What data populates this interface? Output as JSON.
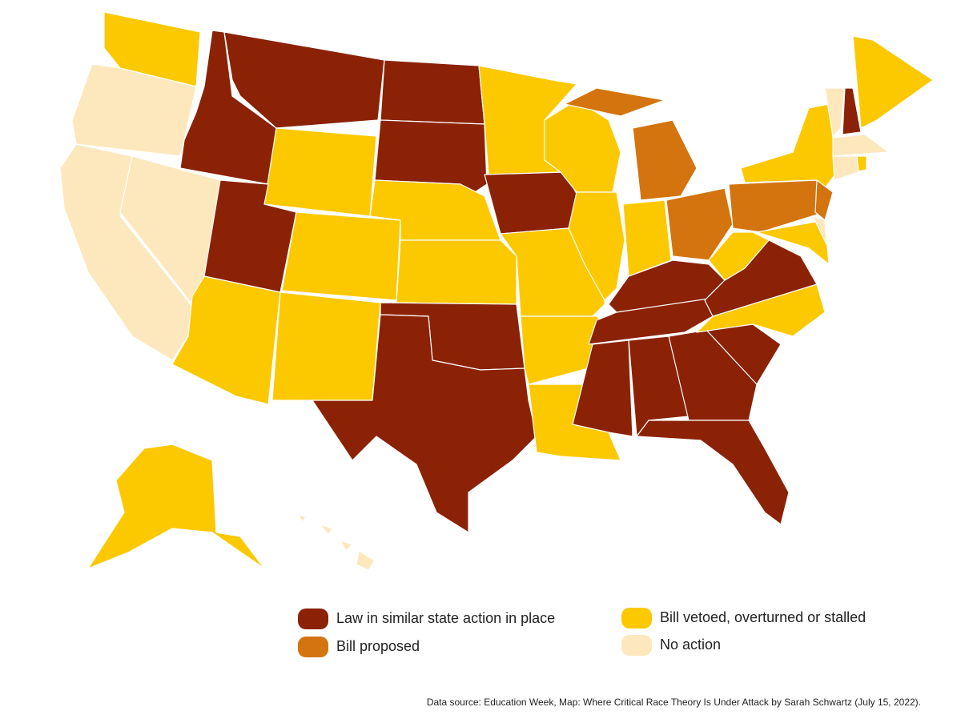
{
  "legend": [
    {
      "label": "Law in similar state action in place",
      "color": "#8b2206"
    },
    {
      "label": "Bill proposed",
      "color": "#d4740e"
    },
    {
      "label": "Bill vetoed, overturned or stalled",
      "color": "#fcc800"
    },
    {
      "label": "No action",
      "color": "#fde8bd"
    }
  ],
  "source": "Data source: Education Week, Map: Where Critical Race Theory Is Under Attack by Sarah Schwartz (July 15, 2022)."
}
